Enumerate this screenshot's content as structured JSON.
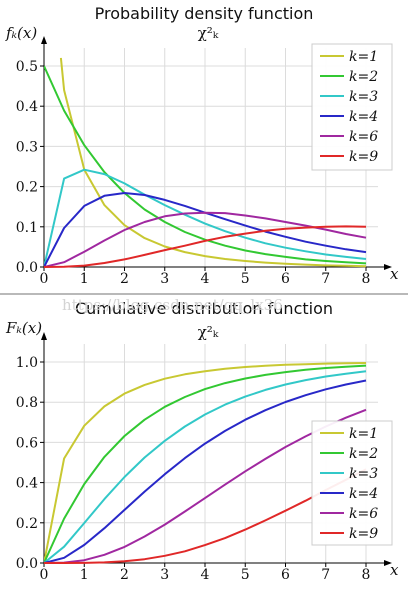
{
  "watermark": "https://blog.csdn.net/qq_lx36",
  "chart_data": [
    {
      "type": "line",
      "title": "Probability density function",
      "subtitle": "χ²_k",
      "ylabel": "f_k(x)",
      "xlabel": "x",
      "xlim": [
        0,
        8
      ],
      "ylim": [
        0,
        0.5
      ],
      "xticks": [
        0,
        1,
        2,
        3,
        4,
        5,
        6,
        7,
        8
      ],
      "yticks": [
        0.0,
        0.1,
        0.2,
        0.3,
        0.4,
        0.5
      ],
      "grid": true,
      "legend_position": "top-right",
      "x": [
        0,
        0.5,
        1,
        1.5,
        2,
        2.5,
        3,
        3.5,
        4,
        4.5,
        5,
        5.5,
        6,
        6.5,
        7,
        7.5,
        8
      ],
      "series": [
        {
          "name": "k=1",
          "color": "#c8c832",
          "values": [
            null,
            0.44,
            0.242,
            0.154,
            0.104,
            0.072,
            0.051,
            0.037,
            0.027,
            0.02,
            0.015,
            0.011,
            0.008,
            0.006,
            0.004,
            0.003,
            0.002
          ]
        },
        {
          "name": "k=2",
          "color": "#32c832",
          "values": [
            0.5,
            0.389,
            0.303,
            0.236,
            0.184,
            0.143,
            0.112,
            0.087,
            0.068,
            0.053,
            0.041,
            0.032,
            0.025,
            0.019,
            0.015,
            0.012,
            0.009
          ]
        },
        {
          "name": "k=3",
          "color": "#32c8c8",
          "values": [
            0,
            0.22,
            0.242,
            0.231,
            0.208,
            0.18,
            0.154,
            0.13,
            0.108,
            0.089,
            0.073,
            0.059,
            0.048,
            0.039,
            0.031,
            0.025,
            0.02
          ]
        },
        {
          "name": "k=4",
          "color": "#2828c8",
          "values": [
            0,
            0.097,
            0.152,
            0.177,
            0.184,
            0.179,
            0.167,
            0.152,
            0.135,
            0.119,
            0.103,
            0.088,
            0.075,
            0.063,
            0.053,
            0.044,
            0.037
          ]
        },
        {
          "name": "k=6",
          "color": "#a028a0",
          "values": [
            0,
            0.012,
            0.038,
            0.066,
            0.092,
            0.112,
            0.126,
            0.133,
            0.135,
            0.134,
            0.128,
            0.121,
            0.112,
            0.103,
            0.093,
            0.082,
            0.073
          ]
        },
        {
          "name": "k=9",
          "color": "#e02828",
          "values": [
            0,
            0.0004,
            0.0035,
            0.01,
            0.019,
            0.03,
            0.042,
            0.053,
            0.065,
            0.075,
            0.083,
            0.09,
            0.095,
            0.098,
            0.1,
            0.101,
            0.1
          ]
        }
      ]
    },
    {
      "type": "line",
      "title": "Cumulative distribution function",
      "subtitle": "χ²_k",
      "ylabel": "F_k(x)",
      "xlabel": "x",
      "xlim": [
        0,
        8
      ],
      "ylim": [
        0,
        1.0
      ],
      "xticks": [
        0,
        1,
        2,
        3,
        4,
        5,
        6,
        7,
        8
      ],
      "yticks": [
        0.0,
        0.2,
        0.4,
        0.6,
        0.8,
        1.0
      ],
      "grid": true,
      "legend_position": "bottom-right",
      "x": [
        0,
        0.5,
        1,
        1.5,
        2,
        2.5,
        3,
        3.5,
        4,
        4.5,
        5,
        5.5,
        6,
        6.5,
        7,
        7.5,
        8
      ],
      "series": [
        {
          "name": "k=1",
          "color": "#c8c832",
          "values": [
            0,
            0.52,
            0.683,
            0.779,
            0.843,
            0.886,
            0.917,
            0.939,
            0.954,
            0.966,
            0.975,
            0.981,
            0.986,
            0.989,
            0.992,
            0.994,
            0.995
          ]
        },
        {
          "name": "k=2",
          "color": "#32c832",
          "values": [
            0,
            0.221,
            0.393,
            0.528,
            0.632,
            0.713,
            0.777,
            0.826,
            0.865,
            0.895,
            0.918,
            0.936,
            0.95,
            0.961,
            0.97,
            0.976,
            0.982
          ]
        },
        {
          "name": "k=3",
          "color": "#32c8c8",
          "values": [
            0,
            0.081,
            0.199,
            0.318,
            0.428,
            0.525,
            0.608,
            0.679,
            0.739,
            0.788,
            0.828,
            0.861,
            0.888,
            0.91,
            0.928,
            0.942,
            0.954
          ]
        },
        {
          "name": "k=4",
          "color": "#2828c8",
          "values": [
            0,
            0.026,
            0.09,
            0.173,
            0.264,
            0.355,
            0.442,
            0.522,
            0.594,
            0.657,
            0.713,
            0.76,
            0.801,
            0.835,
            0.864,
            0.888,
            0.908
          ]
        },
        {
          "name": "k=6",
          "color": "#a028a0",
          "values": [
            0,
            0.002,
            0.014,
            0.041,
            0.08,
            0.132,
            0.191,
            0.256,
            0.323,
            0.39,
            0.456,
            0.518,
            0.577,
            0.63,
            0.679,
            0.723,
            0.762
          ]
        },
        {
          "name": "k=9",
          "color": "#e02828",
          "values": [
            0,
            2e-05,
            0.0006,
            0.003,
            0.009,
            0.019,
            0.036,
            0.058,
            0.089,
            0.124,
            0.166,
            0.212,
            0.26,
            0.31,
            0.363,
            0.414,
            0.466
          ]
        }
      ]
    }
  ]
}
